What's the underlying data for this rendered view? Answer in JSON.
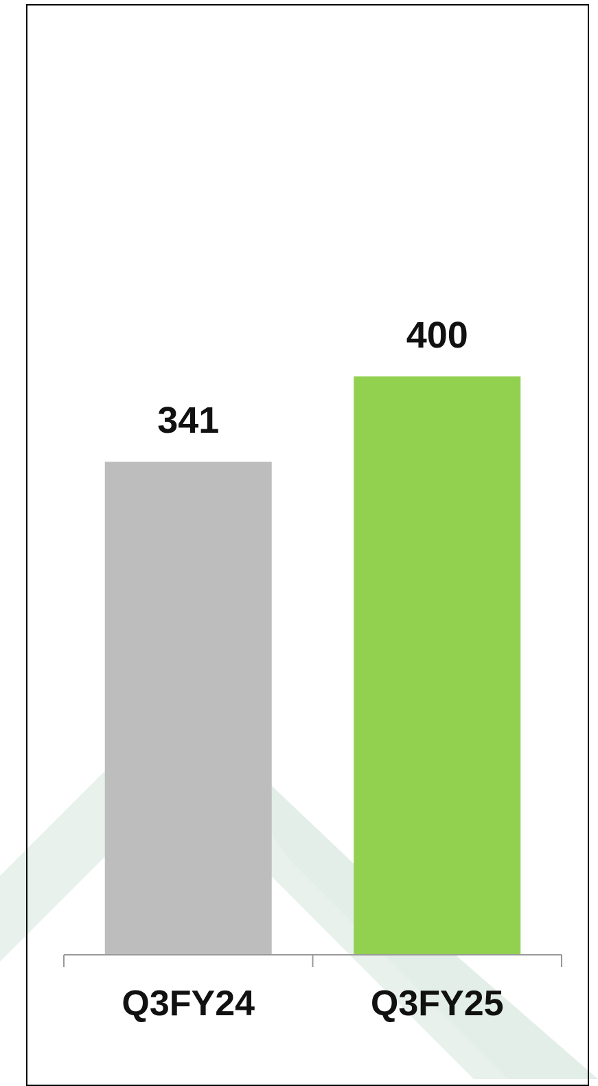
{
  "chart_data": {
    "type": "bar",
    "categories": [
      "Q3FY24",
      "Q3FY25"
    ],
    "series": [
      {
        "values": [
          341,
          400
        ]
      }
    ],
    "data_labels": [
      "341",
      "400"
    ],
    "bar_colors": [
      "#bdbdbd",
      "#92d050"
    ],
    "ylim": [
      0,
      400
    ],
    "grid": false,
    "legend": "none",
    "title": "",
    "xlabel": "",
    "ylabel": ""
  },
  "colors": {
    "axis": "#999999",
    "frame": "#000000",
    "background_shape": "#e6f0ea"
  }
}
